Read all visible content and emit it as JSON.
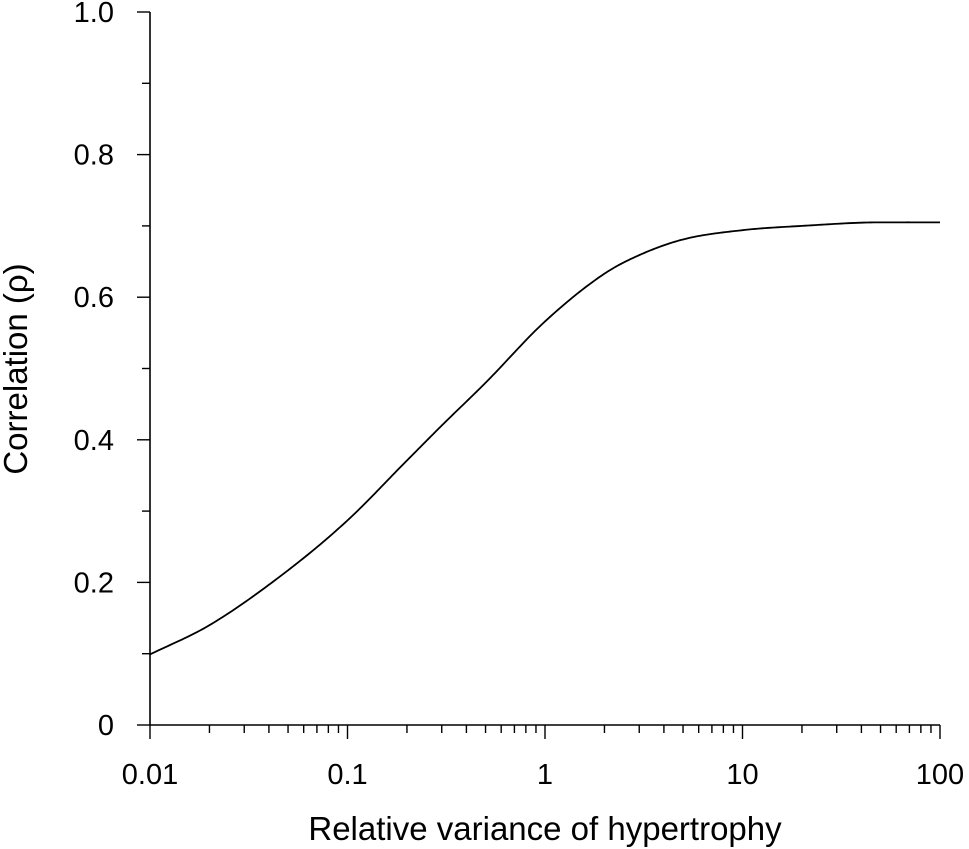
{
  "chart_data": {
    "type": "line",
    "title": "",
    "xlabel": "Relative variance of hypertrophy",
    "ylabel": "Correlation (ρ)",
    "x_scale": "log",
    "xlim": [
      0.01,
      100
    ],
    "ylim": [
      0,
      1.0
    ],
    "x_ticks": [
      0.01,
      0.1,
      1,
      10,
      100
    ],
    "x_tick_labels": [
      "0.01",
      "0.1",
      "1",
      "10",
      "100"
    ],
    "y_ticks": [
      0,
      0.2,
      0.4,
      0.6,
      0.8,
      1.0
    ],
    "y_tick_labels": [
      "0",
      "0.2",
      "0.4",
      "0.6",
      "0.8",
      "1.0"
    ],
    "y_minor_step": 0.1,
    "grid": false,
    "series": [
      {
        "x": [
          0.01,
          0.02,
          0.05,
          0.1,
          0.2,
          0.3,
          0.5,
          1,
          2,
          3,
          5,
          10,
          20,
          50,
          100
        ],
        "y": [
          0.099,
          0.14,
          0.217,
          0.287,
          0.371,
          0.42,
          0.48,
          0.566,
          0.633,
          0.659,
          0.681,
          0.694,
          0.7,
          0.705,
          0.705
        ]
      }
    ]
  }
}
